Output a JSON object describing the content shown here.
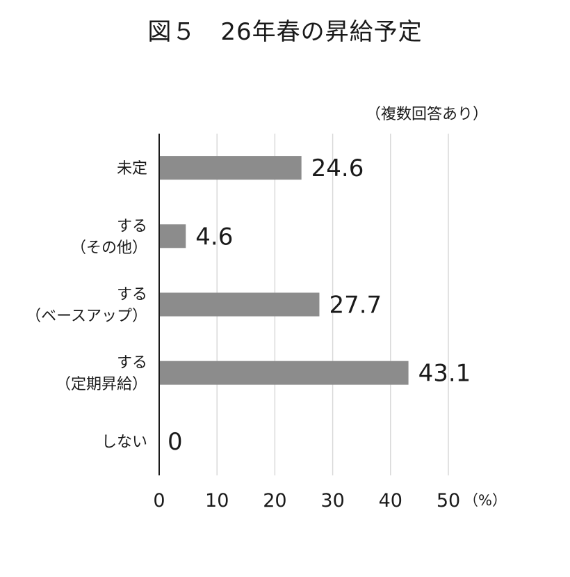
{
  "chart_data": {
    "type": "bar",
    "orientation": "horizontal",
    "title": "図５　26年春の昇給予定",
    "note": "（複数回答あり）",
    "categories": [
      [
        "未定"
      ],
      [
        "する",
        "（その他）"
      ],
      [
        "する",
        "（ベースアップ）"
      ],
      [
        "する",
        "（定期昇給）"
      ],
      [
        "しない"
      ]
    ],
    "values": [
      24.6,
      4.6,
      27.7,
      43.1,
      0
    ],
    "value_labels": [
      "24.6",
      "4.6",
      "27.7",
      "43.1",
      "0"
    ],
    "xlim": [
      0,
      50
    ],
    "xticks": [
      "0",
      "10",
      "20",
      "30",
      "40",
      "50"
    ],
    "unit": "（%）",
    "grid": true,
    "legend": "none",
    "colors": {
      "bar": "#8c8c8c",
      "grid": "#d9d9d9",
      "axis": "#1a1a1a"
    }
  }
}
